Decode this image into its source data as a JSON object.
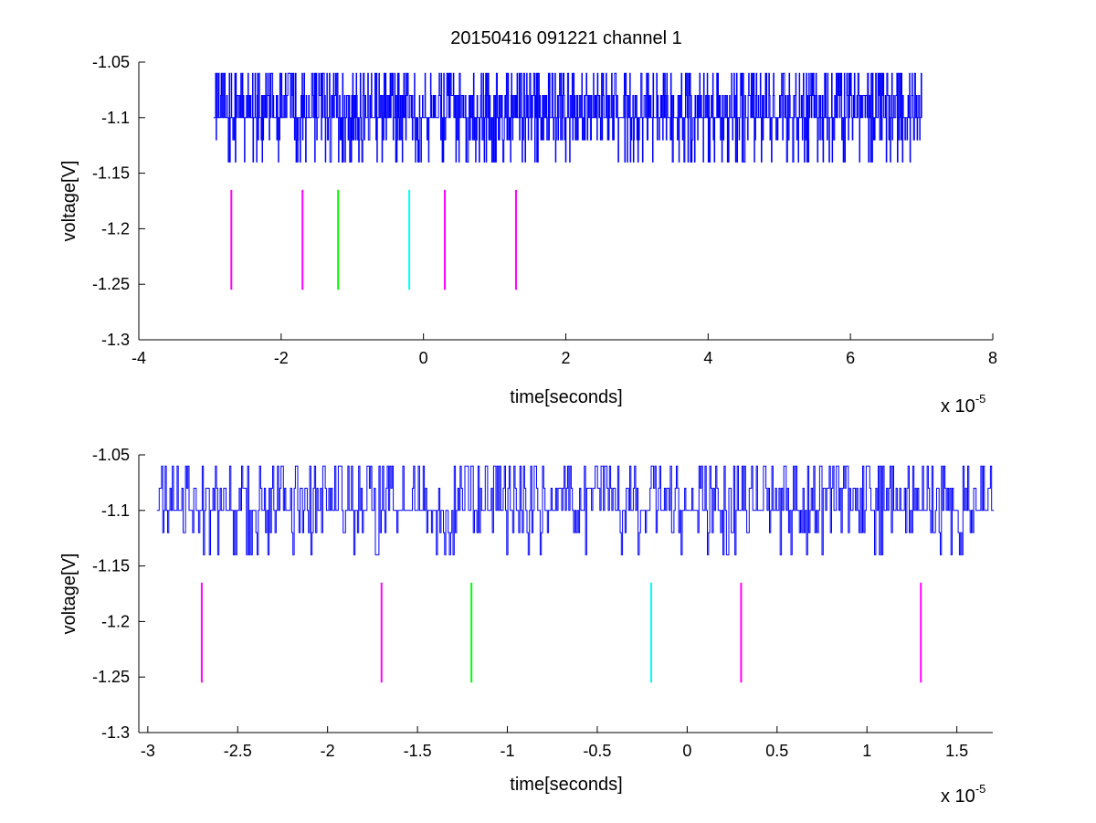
{
  "chart_data": [
    {
      "type": "line",
      "title": "20150416 091221 channel 1",
      "xlabel": "time[seconds]",
      "ylabel": "voltage[V]",
      "x_multiplier_label": {
        "base": "x 10",
        "exp": "-5"
      },
      "x_scale": 1e-05,
      "xlim": [
        -4,
        8
      ],
      "ylim": [
        -1.3,
        -1.05
      ],
      "xticks": [
        -4,
        -2,
        0,
        2,
        4,
        6,
        8
      ],
      "xtick_labels": [
        "-4",
        "-2",
        "0",
        "2",
        "4",
        "6",
        "8"
      ],
      "yticks": [
        -1.3,
        -1.25,
        -1.2,
        -1.15,
        -1.1,
        -1.05
      ],
      "ytick_labels": [
        "-1.3",
        "-1.25",
        "-1.2",
        "-1.15",
        "-1.1",
        "-1.05"
      ],
      "grid": false,
      "signal": {
        "color": "#0000ff",
        "x_range": [
          -2.95,
          7.0
        ],
        "baseline": -1.1,
        "levels": [
          -1.14,
          -1.12,
          -1.1,
          -1.08,
          -1.06
        ],
        "seed": 11,
        "samples": 1400
      },
      "markers": [
        {
          "x": -2.7,
          "y0": -1.255,
          "y1": -1.165,
          "color": "#ff00ff"
        },
        {
          "x": -1.7,
          "y0": -1.255,
          "y1": -1.165,
          "color": "#ff00ff"
        },
        {
          "x": -1.2,
          "y0": -1.255,
          "y1": -1.165,
          "color": "#00ff00"
        },
        {
          "x": -0.2,
          "y0": -1.255,
          "y1": -1.165,
          "color": "#00ffff"
        },
        {
          "x": 0.3,
          "y0": -1.255,
          "y1": -1.165,
          "color": "#ff00ff"
        },
        {
          "x": 1.3,
          "y0": -1.255,
          "y1": -1.165,
          "color": "#ff00ff"
        }
      ]
    },
    {
      "type": "line",
      "title": "",
      "xlabel": "time[seconds]",
      "ylabel": "voltage[V]",
      "x_multiplier_label": {
        "base": "x 10",
        "exp": "-5"
      },
      "x_scale": 1e-05,
      "xlim": [
        -3.05,
        1.7
      ],
      "ylim": [
        -1.3,
        -1.05
      ],
      "xticks": [
        -3,
        -2.5,
        -2,
        -1.5,
        -1,
        -0.5,
        0,
        0.5,
        1,
        1.5
      ],
      "xtick_labels": [
        "-3",
        "-2.5",
        "-2",
        "-1.5",
        "-1",
        "-0.5",
        "0",
        "0.5",
        "1",
        "1.5"
      ],
      "yticks": [
        -1.3,
        -1.25,
        -1.2,
        -1.15,
        -1.1,
        -1.05
      ],
      "ytick_labels": [
        "-1.3",
        "-1.25",
        "-1.2",
        "-1.15",
        "-1.1",
        "-1.05"
      ],
      "grid": false,
      "signal": {
        "color": "#0000ff",
        "x_range": [
          -2.95,
          1.7
        ],
        "baseline": -1.1,
        "levels": [
          -1.14,
          -1.12,
          -1.1,
          -1.08,
          -1.06
        ],
        "seed": 23,
        "samples": 700
      },
      "markers": [
        {
          "x": -2.7,
          "y0": -1.255,
          "y1": -1.165,
          "color": "#ff00ff"
        },
        {
          "x": -1.7,
          "y0": -1.255,
          "y1": -1.165,
          "color": "#ff00ff"
        },
        {
          "x": -1.2,
          "y0": -1.255,
          "y1": -1.165,
          "color": "#00ff00"
        },
        {
          "x": -0.2,
          "y0": -1.255,
          "y1": -1.165,
          "color": "#00ffff"
        },
        {
          "x": 0.3,
          "y0": -1.255,
          "y1": -1.165,
          "color": "#ff00ff"
        },
        {
          "x": 1.3,
          "y0": -1.255,
          "y1": -1.165,
          "color": "#ff00ff"
        }
      ]
    }
  ]
}
